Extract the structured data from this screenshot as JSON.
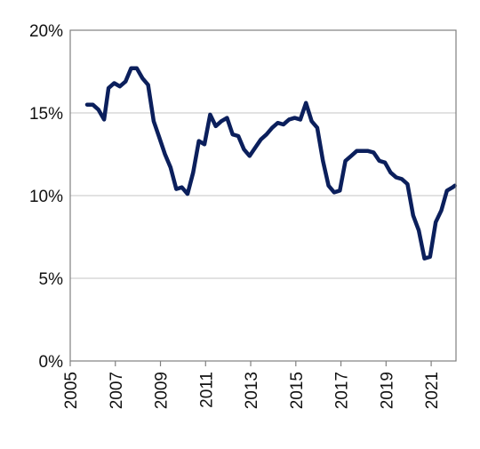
{
  "chart_data": {
    "type": "line",
    "title": "",
    "xlabel": "",
    "ylabel": "",
    "xlim": [
      2005,
      2022.1
    ],
    "ylim": [
      0,
      20
    ],
    "grid": true,
    "legend": "none",
    "x_ticks": [
      "2005",
      "2007",
      "2009",
      "2011",
      "2013",
      "2015",
      "2017",
      "2019",
      "2021"
    ],
    "y_ticks": [
      "0%",
      "5%",
      "10%",
      "15%",
      "20%"
    ],
    "y_tick_values": [
      0,
      5,
      10,
      15,
      20
    ],
    "x_tick_values": [
      2005,
      2007,
      2009,
      2011,
      2013,
      2015,
      2017,
      2019,
      2021
    ],
    "series": [
      {
        "color": "#0b1f5c",
        "x": [
          2005.75,
          2006.0,
          2006.25,
          2006.5,
          2006.7,
          2006.95,
          2007.2,
          2007.45,
          2007.7,
          2007.95,
          2008.2,
          2008.45,
          2008.7,
          2008.95,
          2009.2,
          2009.45,
          2009.7,
          2009.95,
          2010.2,
          2010.45,
          2010.7,
          2010.95,
          2011.2,
          2011.45,
          2011.7,
          2011.95,
          2012.2,
          2012.45,
          2012.7,
          2012.95,
          2013.2,
          2013.45,
          2013.7,
          2013.95,
          2014.2,
          2014.45,
          2014.7,
          2014.95,
          2015.2,
          2015.45,
          2015.7,
          2015.95,
          2016.2,
          2016.45,
          2016.7,
          2016.95,
          2017.2,
          2017.45,
          2017.7,
          2017.95,
          2018.2,
          2018.45,
          2018.7,
          2018.95,
          2019.2,
          2019.45,
          2019.7,
          2019.95,
          2020.2,
          2020.45,
          2020.7,
          2020.95,
          2021.2,
          2021.45,
          2021.7,
          2021.95,
          2022.05
        ],
        "values": [
          15.5,
          15.5,
          15.2,
          14.6,
          16.5,
          16.8,
          16.6,
          16.9,
          17.7,
          17.7,
          17.1,
          16.7,
          14.5,
          13.5,
          12.5,
          11.7,
          10.4,
          10.5,
          10.1,
          11.4,
          13.3,
          13.1,
          14.9,
          14.2,
          14.5,
          14.7,
          13.7,
          13.6,
          12.8,
          12.4,
          12.9,
          13.4,
          13.7,
          14.1,
          14.4,
          14.3,
          14.6,
          14.7,
          14.6,
          15.6,
          14.5,
          14.1,
          12.1,
          10.6,
          10.2,
          10.3,
          12.1,
          12.4,
          12.7,
          12.7,
          12.7,
          12.6,
          12.1,
          12.0,
          11.4,
          11.1,
          11.0,
          10.7,
          8.8,
          7.9,
          6.2,
          6.3,
          8.4,
          9.1,
          10.3,
          10.5,
          10.6
        ]
      }
    ]
  }
}
